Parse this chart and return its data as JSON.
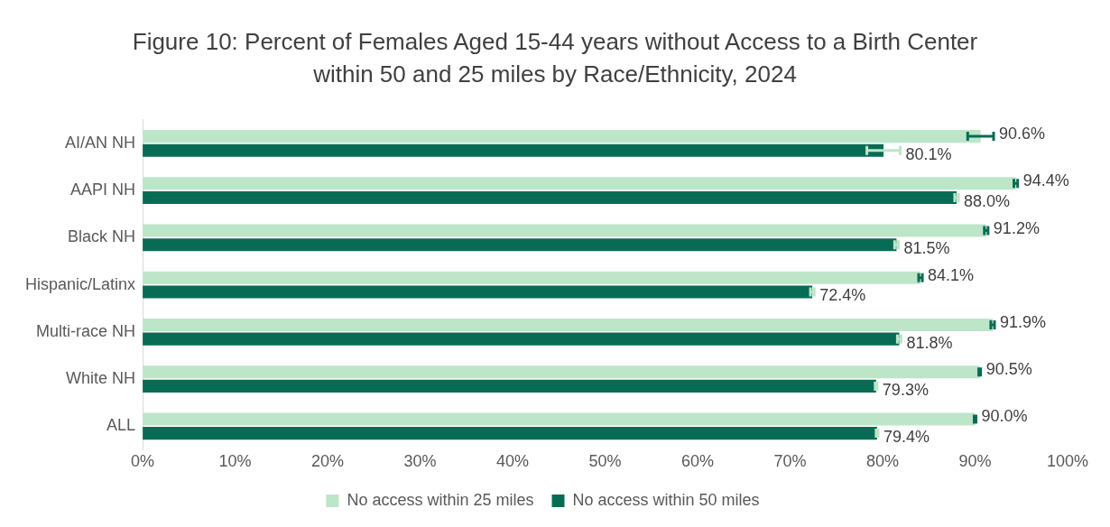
{
  "chart_data": {
    "type": "bar",
    "orientation": "horizontal",
    "title": "Figure 10: Percent of Females Aged 15-44 years without Access to a Birth Center within 50 and 25 miles by Race/Ethnicity, 2024",
    "categories": [
      "AI/AN NH",
      "AAPI NH",
      "Black NH",
      "Hispanic/Latinx",
      "Multi-race NH",
      "White NH",
      "ALL"
    ],
    "series": [
      {
        "name": "No access within 25 miles",
        "color": "#bde5c8",
        "values": [
          90.6,
          94.4,
          91.2,
          84.1,
          91.9,
          90.5,
          90.0
        ],
        "value_labels": [
          "90.6%",
          "94.4%",
          "91.2%",
          "84.1%",
          "91.9%",
          "90.5%",
          "90.0%"
        ],
        "errors": [
          1.4,
          0.2,
          0.2,
          0.2,
          0.2,
          0.1,
          0.1
        ]
      },
      {
        "name": "No access within 50 miles",
        "color": "#086c54",
        "values": [
          80.1,
          88.0,
          81.5,
          72.4,
          81.8,
          79.3,
          79.4
        ],
        "value_labels": [
          "80.1%",
          "88.0%",
          "81.5%",
          "72.4%",
          "81.8%",
          "79.3%",
          "79.4%"
        ],
        "errors": [
          1.8,
          0.2,
          0.2,
          0.2,
          0.2,
          0.1,
          0.1
        ]
      }
    ],
    "xlim": [
      0,
      100
    ],
    "xticks": [
      {
        "value": 0,
        "label": "0%"
      },
      {
        "value": 10,
        "label": "10%"
      },
      {
        "value": 20,
        "label": "20%"
      },
      {
        "value": 30,
        "label": "30%"
      },
      {
        "value": 40,
        "label": "40%"
      },
      {
        "value": 50,
        "label": "50%"
      },
      {
        "value": 60,
        "label": "60%"
      },
      {
        "value": 70,
        "label": "70%"
      },
      {
        "value": 80,
        "label": "80%"
      },
      {
        "value": 90,
        "label": "90%"
      },
      {
        "value": 100,
        "label": "100%"
      }
    ],
    "legend": "bottom",
    "grid": false
  }
}
